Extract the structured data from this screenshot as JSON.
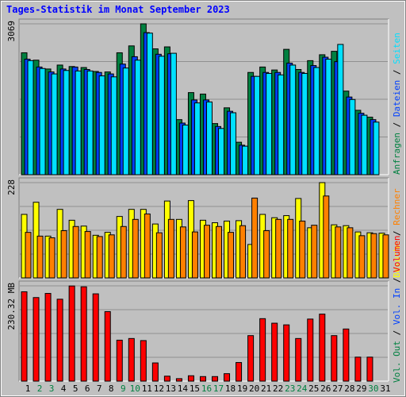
{
  "title": "Tages-Statistik im Monat September 2023",
  "colors": {
    "background": "#c0c0c0",
    "title": "#0000ff",
    "hits": "#008040",
    "files": "#0040ff",
    "pages": "#00e0ff",
    "visits": "#ffff00",
    "sites": "#ff8000",
    "volume": "#ff0000",
    "weekday_label": "#000000",
    "weekend_label": "#008040"
  },
  "right_labels": {
    "panel1": [
      {
        "text": "Anfragen",
        "color": "#008040"
      },
      {
        "text": "Dateien",
        "color": "#0040ff"
      },
      {
        "text": "Seiten",
        "color": "#00e0ff"
      }
    ],
    "panel2": [
      {
        "text": "Besuche",
        "color": "#ffff00"
      },
      {
        "text": "Rechner",
        "color": "#ff8000"
      }
    ],
    "panel3": [
      {
        "text": "Vol. Out",
        "color": "#008040"
      },
      {
        "text": "Vol. In",
        "color": "#0040ff"
      },
      {
        "text": "Volumen",
        "color": "#ff0000"
      }
    ]
  },
  "chart_data": [
    {
      "type": "bar",
      "panel": "requests",
      "ymax_label": "3069",
      "ylim": [
        0,
        3069
      ],
      "grid": true,
      "categories": [
        "1",
        "2",
        "3",
        "4",
        "5",
        "6",
        "7",
        "8",
        "9",
        "10",
        "11",
        "12",
        "13",
        "14",
        "15",
        "16",
        "17",
        "18",
        "19",
        "20",
        "21",
        "22",
        "23",
        "24",
        "25",
        "26",
        "27",
        "28",
        "29",
        "30",
        "31"
      ],
      "weekend_days": [
        "2",
        "3",
        "9",
        "10",
        "16",
        "17",
        "23",
        "24",
        "30"
      ],
      "series": [
        {
          "name": "Anfragen",
          "color": "#008040",
          "values": [
            2480,
            2330,
            2150,
            2230,
            2200,
            2180,
            2100,
            2090,
            2480,
            2620,
            3069,
            2560,
            2600,
            1120,
            1670,
            1640,
            1040,
            1360,
            660,
            2080,
            2190,
            2130,
            2550,
            2140,
            2320,
            2440,
            2510,
            1700,
            1310,
            1170,
            0
          ]
        },
        {
          "name": "Dateien",
          "color": "#0040ff",
          "values": [
            2350,
            2190,
            2090,
            2150,
            2190,
            2140,
            2080,
            2050,
            2250,
            2400,
            2890,
            2450,
            2460,
            1050,
            1520,
            1520,
            980,
            1290,
            600,
            2000,
            2080,
            2080,
            2270,
            2080,
            2220,
            2390,
            2300,
            1580,
            1250,
            1120,
            0
          ]
        },
        {
          "name": "Seiten",
          "color": "#00e0ff",
          "values": [
            2320,
            2160,
            2050,
            2120,
            2110,
            2110,
            2010,
            1990,
            2170,
            2330,
            2880,
            2410,
            2470,
            1010,
            1460,
            1480,
            940,
            1260,
            580,
            2000,
            2060,
            2030,
            2230,
            2060,
            2180,
            2350,
            2650,
            1530,
            1210,
            1070,
            0
          ]
        }
      ]
    },
    {
      "type": "bar",
      "panel": "visits",
      "ymax_label": "228",
      "ylim": [
        0,
        228
      ],
      "grid": true,
      "categories": [
        "1",
        "2",
        "3",
        "4",
        "5",
        "6",
        "7",
        "8",
        "9",
        "10",
        "11",
        "12",
        "13",
        "14",
        "15",
        "16",
        "17",
        "18",
        "19",
        "20",
        "21",
        "22",
        "23",
        "24",
        "25",
        "26",
        "27",
        "28",
        "29",
        "30",
        "31"
      ],
      "weekend_days": [
        "2",
        "3",
        "9",
        "10",
        "16",
        "17",
        "23",
        "24",
        "30"
      ],
      "series": [
        {
          "name": "Besuche",
          "color": "#ffff00",
          "values": [
            152,
            181,
            100,
            164,
            138,
            124,
            102,
            109,
            147,
            164,
            164,
            129,
            184,
            140,
            185,
            138,
            132,
            136,
            137,
            80,
            152,
            144,
            149,
            190,
            120,
            228,
            127,
            125,
            110,
            108,
            107
          ]
        },
        {
          "name": "Rechner",
          "color": "#ff8000",
          "values": [
            109,
            100,
            96,
            113,
            123,
            111,
            99,
            103,
            123,
            140,
            153,
            108,
            140,
            122,
            110,
            126,
            123,
            109,
            125,
            191,
            113,
            140,
            140,
            136,
            126,
            196,
            122,
            120,
            101,
            106,
            103
          ]
        }
      ]
    },
    {
      "type": "bar",
      "panel": "volume",
      "ymax_label": "230.32 MB",
      "ylim": [
        0,
        230.32
      ],
      "grid": true,
      "categories": [
        "1",
        "2",
        "3",
        "4",
        "5",
        "6",
        "7",
        "8",
        "9",
        "10",
        "11",
        "12",
        "13",
        "14",
        "15",
        "16",
        "17",
        "18",
        "19",
        "20",
        "21",
        "22",
        "23",
        "24",
        "25",
        "26",
        "27",
        "28",
        "29",
        "30",
        "31"
      ],
      "weekend_days": [
        "2",
        "3",
        "9",
        "10",
        "16",
        "17",
        "23",
        "24",
        "30"
      ],
      "series": [
        {
          "name": "Volumen",
          "color": "#ff0000",
          "values": [
            216,
            202,
            212,
            198,
            230,
            228,
            211,
            168,
            99,
            103,
            98,
            44,
            12,
            6,
            13,
            11,
            11,
            18,
            45,
            110,
            151,
            140,
            136,
            103,
            150,
            162,
            110,
            126,
            58,
            58,
            0
          ]
        }
      ]
    }
  ]
}
